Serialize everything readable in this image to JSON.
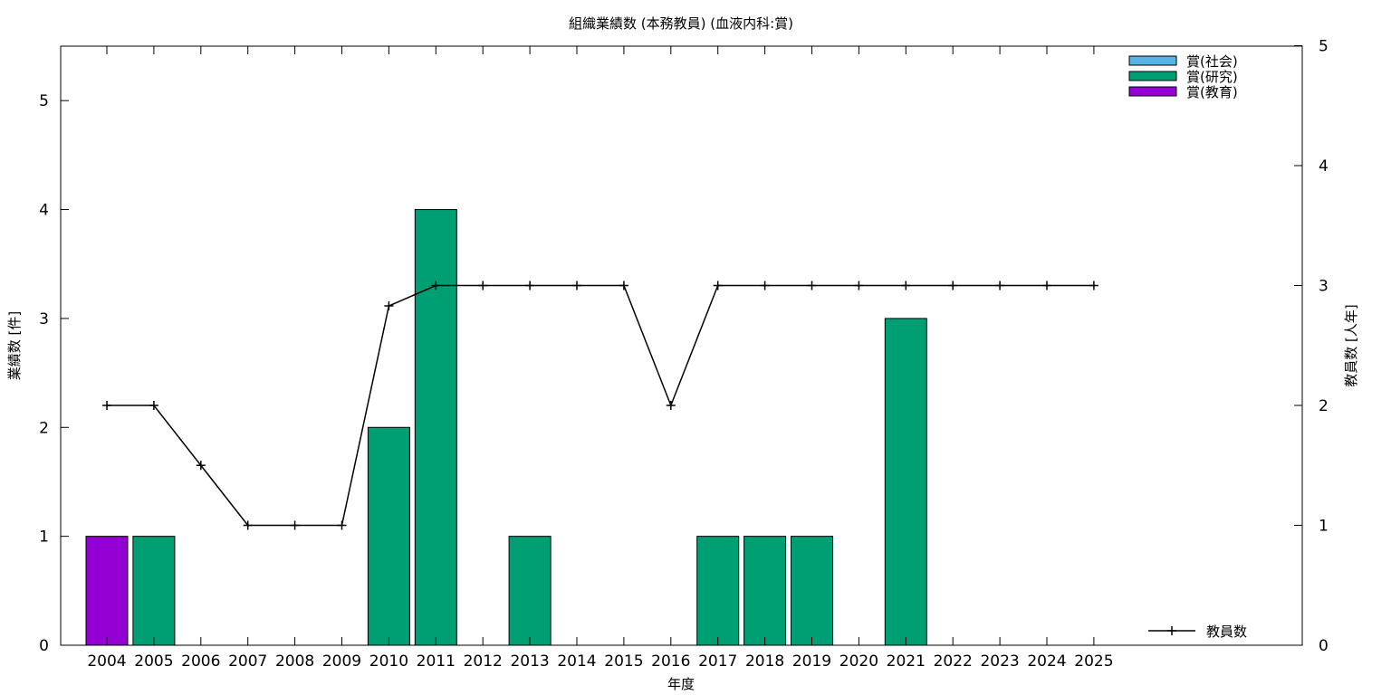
{
  "chart_data": {
    "type": "bar",
    "title": "組織業績数 (本務教員) (血液内科:賞)",
    "xlabel": "年度",
    "ylabel": "業績数 [件]",
    "y2label": "教員数 [人年]",
    "categories": [
      "2004",
      "2005",
      "2006",
      "2007",
      "2008",
      "2009",
      "2010",
      "2011",
      "2012",
      "2013",
      "2014",
      "2015",
      "2016",
      "2017",
      "2018",
      "2019",
      "2020",
      "2021",
      "2022",
      "2023",
      "2024",
      "2025"
    ],
    "ylim": [
      0,
      5.5
    ],
    "yticks": [
      "0",
      "1",
      "2",
      "3",
      "4",
      "5"
    ],
    "y2lim": [
      0,
      5
    ],
    "y2ticks": [
      "0",
      "1",
      "2",
      "3",
      "4",
      "5"
    ],
    "grid": false,
    "legend_position": "top-right",
    "series": [
      {
        "name": "賞(社会)",
        "color": "#56b4e9",
        "values": [
          0,
          0,
          0,
          0,
          0,
          0,
          0,
          0,
          0,
          0,
          0,
          0,
          0,
          0,
          0,
          0,
          0,
          0,
          0,
          0,
          0,
          0
        ]
      },
      {
        "name": "賞(研究)",
        "color": "#009e73",
        "values": [
          0,
          1,
          0,
          0,
          0,
          0,
          2,
          4,
          0,
          1,
          0,
          0,
          0,
          1,
          1,
          1,
          0,
          3,
          0,
          0,
          0,
          0
        ]
      },
      {
        "name": "賞(教育)",
        "color": "#9400d3",
        "values": [
          1,
          0,
          0,
          0,
          0,
          0,
          0,
          0,
          0,
          0,
          0,
          0,
          0,
          0,
          0,
          0,
          0,
          0,
          0,
          0,
          0,
          0
        ]
      }
    ],
    "line_series": {
      "name": "教員数",
      "axis": "right",
      "color": "#000000",
      "values": [
        2,
        2,
        1.5,
        1,
        1,
        1,
        2.83,
        3,
        3,
        3,
        3,
        3,
        2,
        3,
        3,
        3,
        3,
        3,
        3,
        3,
        3,
        3
      ]
    }
  }
}
